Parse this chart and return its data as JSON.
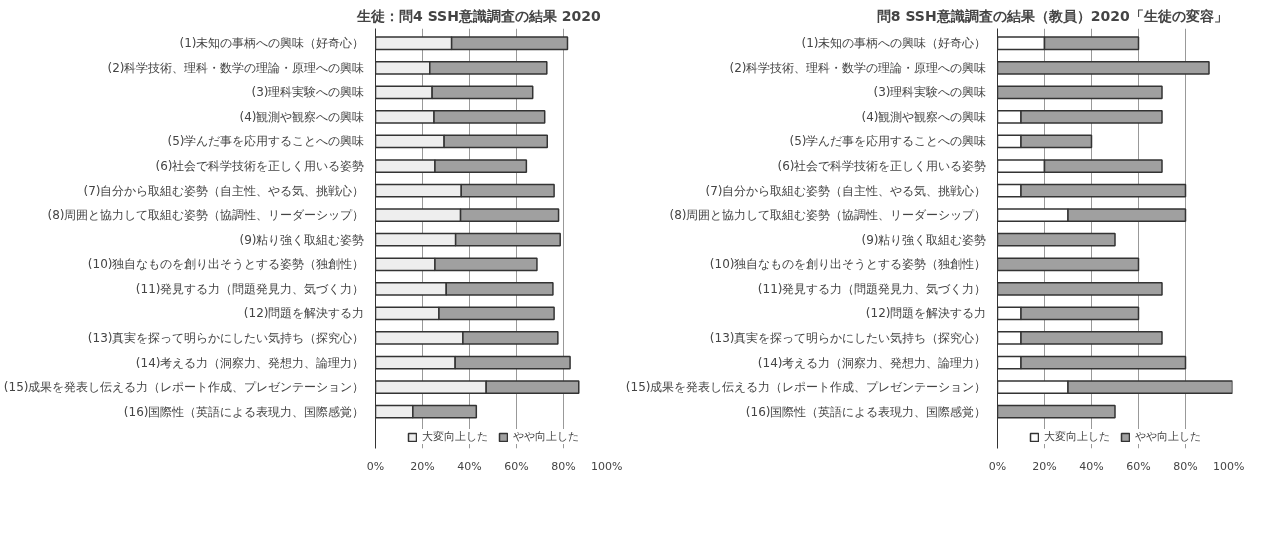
{
  "chart_data": [
    {
      "type": "bar",
      "orientation": "horizontal",
      "stacked": true,
      "title": "生徒：問4  SSH意識調査の結果  2020",
      "categories": [
        "(1)未知の事柄への興味（好奇心）",
        "(2)科学技術、理科・数学の理論・原理への興味",
        "(3)理科実験への興味",
        "(4)観測や観察への興味",
        "(5)学んだ事を応用することへの興味",
        "(6)社会で科学技術を正しく用いる姿勢",
        "(7)自分から取組む姿勢（自主性、やる気、挑戦心）",
        "(8)周囲と協力して取組む姿勢（協調性、リーダーシップ）",
        "(9)粘り強く取組む姿勢",
        "(10)独自なものを創り出そうとする姿勢（独創性）",
        "(11)発見する力（問題発見力、気づく力）",
        "(12)問題を解決する力",
        "(13)真実を探って明らかにしたい気持ち（探究心）",
        "(14)考える力（洞察力、発想力、論理力）",
        "(15)成果を発表し伝える力（レポート作成、プレゼンテーション）",
        "(16)国際性（英語による表現力、国際感覚）"
      ],
      "series": [
        {
          "name": "大変向上した",
          "color": "#eeeeee",
          "values": [
            32.4,
            23.1,
            24.1,
            24.9,
            29.2,
            25.3,
            36.5,
            36.2,
            34.1,
            25.3,
            30.1,
            27.0,
            37.2,
            33.9,
            47.1,
            15.9
          ]
        },
        {
          "name": "やや向上した",
          "color": "#a0a0a0",
          "values": [
            49.3,
            49.8,
            42.8,
            47.1,
            43.9,
            38.9,
            39.5,
            41.7,
            44.5,
            43.4,
            45.4,
            49.0,
            40.4,
            48.9,
            39.4,
            27.0
          ]
        }
      ],
      "xlim": [
        0,
        100
      ],
      "xticks": [
        {
          "value": 0,
          "label": "0%"
        },
        {
          "value": 20,
          "label": "20%"
        },
        {
          "value": 40,
          "label": "40%"
        },
        {
          "value": 60,
          "label": "60%"
        },
        {
          "value": 80,
          "label": "80%"
        },
        {
          "value": 100,
          "label": "100%"
        }
      ],
      "grid": "x",
      "legend": "bottom"
    },
    {
      "type": "bar",
      "orientation": "horizontal",
      "stacked": true,
      "title": "問8  SSH意識調査の結果（教員）2020「生徒の変容」",
      "categories": [
        "(1)未知の事柄への興味（好奇心）",
        "(2)科学技術、理科・数学の理論・原理への興味",
        "(3)理科実験への興味",
        "(4)観測や観察への興味",
        "(5)学んだ事を応用することへの興味",
        "(6)社会で科学技術を正しく用いる姿勢",
        "(7)自分から取組む姿勢（自主性、やる気、挑戦心）",
        "(8)周囲と協力して取組む姿勢（協調性、リーダーシップ）",
        "(9)粘り強く取組む姿勢",
        "(10)独自なものを創り出そうとする姿勢（独創性）",
        "(11)発見する力（問題発見力、気づく力）",
        "(12)問題を解決する力",
        "(13)真実を探って明らかにしたい気持ち（探究心）",
        "(14)考える力（洞察力、発想力、論理力）",
        "(15)成果を発表し伝える力（レポート作成、プレゼンテーション）",
        "(16)国際性（英語による表現力、国際感覚）"
      ],
      "series": [
        {
          "name": "大変向上した",
          "color": "#ffffff",
          "values": [
            20,
            0,
            0,
            10,
            10,
            20,
            10,
            30,
            0,
            0,
            0,
            10,
            10,
            10,
            30,
            0
          ]
        },
        {
          "name": "やや向上した",
          "color": "#a0a0a0",
          "values": [
            40,
            90,
            70,
            60,
            30,
            50,
            70,
            50,
            50,
            60,
            70,
            50,
            60,
            70,
            70,
            50
          ]
        }
      ],
      "xlim": [
        0,
        100
      ],
      "xticks": [
        {
          "value": 0,
          "label": "0%"
        },
        {
          "value": 20,
          "label": "20%"
        },
        {
          "value": 40,
          "label": "40%"
        },
        {
          "value": 60,
          "label": "60%"
        },
        {
          "value": 80,
          "label": "80%"
        },
        {
          "value": 100,
          "label": "100%"
        }
      ],
      "grid": "x",
      "legend": "bottom"
    }
  ]
}
